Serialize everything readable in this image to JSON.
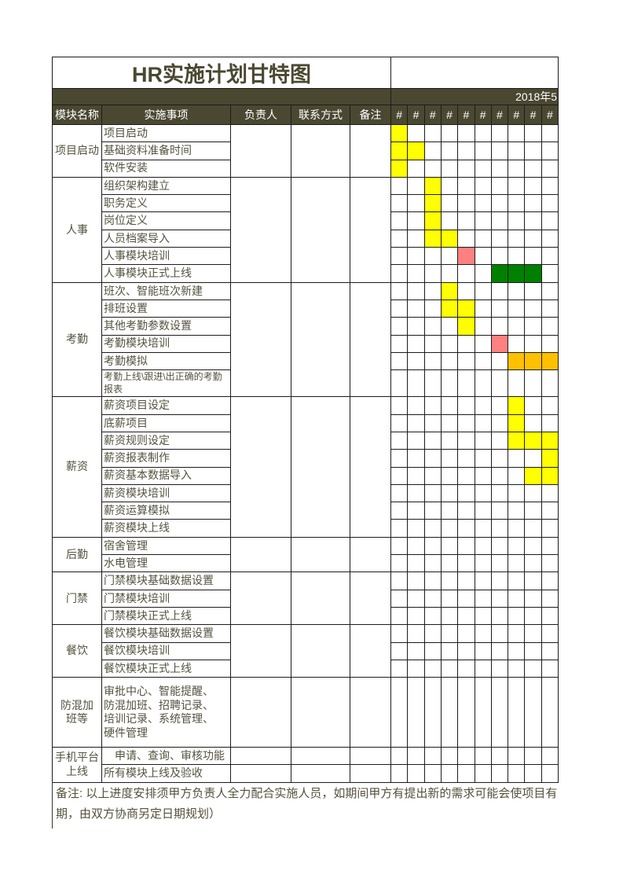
{
  "title": "HR实施计划甘特图",
  "period_label": "2018年5",
  "columns": {
    "module": "模块名称",
    "task": "实施事项",
    "owner": "负责人",
    "contact": "联系方式",
    "note": "备注"
  },
  "timeline": {
    "day_marks": [
      "#",
      "#",
      "#",
      "#",
      "#",
      "#",
      "#",
      "#",
      "#",
      "#"
    ]
  },
  "colors": {
    "yellow": "#FFFF00",
    "salmon": "#FF8080",
    "green": "#008000",
    "gold": "#FFC000",
    "olive": "#4B4832"
  },
  "groups": [
    {
      "module": "项目启动",
      "merged_info": true,
      "rows": [
        {
          "task": "项目启动",
          "bars": [
            {
              "col": 1,
              "color": "yellow"
            }
          ]
        },
        {
          "task": "基础资料准备时间",
          "bars": [
            {
              "col": 1,
              "color": "yellow"
            },
            {
              "col": 2,
              "color": "yellow"
            }
          ]
        },
        {
          "task": "软件安装",
          "bars": [
            {
              "col": 1,
              "color": "yellow"
            }
          ]
        }
      ]
    },
    {
      "module": "人事",
      "merged_info": true,
      "rows": [
        {
          "task": "组织架构建立",
          "bars": [
            {
              "col": 3,
              "color": "yellow"
            }
          ]
        },
        {
          "task": "职务定义",
          "bars": [
            {
              "col": 3,
              "color": "yellow"
            }
          ]
        },
        {
          "task": "岗位定义",
          "bars": [
            {
              "col": 3,
              "color": "yellow"
            }
          ]
        },
        {
          "task": "人员档案导入",
          "bars": [
            {
              "col": 3,
              "color": "yellow"
            },
            {
              "col": 4,
              "color": "yellow"
            }
          ]
        },
        {
          "task": "人事模块培训",
          "bars": [
            {
              "col": 5,
              "color": "salmon"
            }
          ]
        },
        {
          "task": "人事模块正式上线",
          "bars": [
            {
              "col": 7,
              "color": "green"
            },
            {
              "col": 8,
              "color": "green"
            },
            {
              "col": 9,
              "color": "green"
            }
          ]
        }
      ]
    },
    {
      "module": "考勤",
      "merged_info": true,
      "rows": [
        {
          "task": "班次、智能班次新建",
          "bars": [
            {
              "col": 4,
              "color": "yellow"
            }
          ]
        },
        {
          "task": "排班设置",
          "bars": [
            {
              "col": 4,
              "color": "yellow"
            },
            {
              "col": 5,
              "color": "yellow"
            }
          ]
        },
        {
          "task": "其他考勤参数设置",
          "bars": [
            {
              "col": 5,
              "color": "yellow"
            }
          ]
        },
        {
          "task": "考勤模块培训",
          "bars": [
            {
              "col": 7,
              "color": "salmon"
            }
          ]
        },
        {
          "task": "考勤模拟",
          "bars": [
            {
              "col": 8,
              "color": "gold"
            },
            {
              "col": 9,
              "color": "gold"
            },
            {
              "col": 10,
              "color": "gold"
            }
          ]
        },
        {
          "task": "考勤上线\\跟进\\出正确的考勤报表",
          "size": "2line",
          "small": true,
          "bars": []
        }
      ]
    },
    {
      "module": "薪资",
      "merged_info": true,
      "rows": [
        {
          "task": "薪资项目设定",
          "bars": [
            {
              "col": 8,
              "color": "yellow"
            }
          ]
        },
        {
          "task": "底薪项目",
          "bars": [
            {
              "col": 8,
              "color": "yellow"
            }
          ]
        },
        {
          "task": "薪资规则设定",
          "bars": [
            {
              "col": 8,
              "color": "yellow"
            },
            {
              "col": 9,
              "color": "yellow"
            },
            {
              "col": 10,
              "color": "yellow"
            }
          ]
        },
        {
          "task": "薪资报表制作",
          "bars": [
            {
              "col": 10,
              "color": "yellow"
            }
          ]
        },
        {
          "task": "薪资基本数据导入",
          "bars": [
            {
              "col": 9,
              "color": "yellow"
            },
            {
              "col": 10,
              "color": "yellow"
            }
          ]
        },
        {
          "task": "薪资模块培训",
          "bars": []
        },
        {
          "task": "薪资运算模拟",
          "bars": []
        },
        {
          "task": "薪资模块上线",
          "bars": []
        }
      ]
    },
    {
      "module": "后勤",
      "merged_info": true,
      "rows": [
        {
          "task": "宿舍管理",
          "bars": []
        },
        {
          "task": "水电管理",
          "bars": []
        }
      ]
    },
    {
      "module": "门禁",
      "merged_info": true,
      "rows": [
        {
          "task": "门禁模块基础数据设置",
          "bars": []
        },
        {
          "task": "门禁模块培训",
          "bars": []
        },
        {
          "task": "门禁模块正式上线",
          "bars": []
        }
      ]
    },
    {
      "module": "餐饮",
      "merged_info": true,
      "rows": [
        {
          "task": "餐饮模块基础数据设置",
          "bars": []
        },
        {
          "task": "餐饮模块培训",
          "bars": []
        },
        {
          "task": "餐饮模块正式上线",
          "bars": []
        }
      ]
    },
    {
      "module": "防混加\n班等",
      "merged_info": true,
      "rows": [
        {
          "task": "审批中心、智能提醒、\n防混加班、招聘记录、\n培训记录、系统管理、\n硬件管理",
          "size": "4line",
          "bars": []
        }
      ]
    },
    {
      "module": "手机平台\n上线",
      "merged_info": false,
      "rows": [
        {
          "task": "　申请、查询、审核功能",
          "bars": []
        },
        {
          "task": "所有模块上线及验收",
          "bars": []
        }
      ]
    }
  ],
  "footnote": {
    "line1": "备注: 以上进度安排须甲方负责人全力配合实施人员，如期间甲方有提出新的需求可能会使项目有",
    "line2": "期，由双方协商另定日期规划）"
  }
}
